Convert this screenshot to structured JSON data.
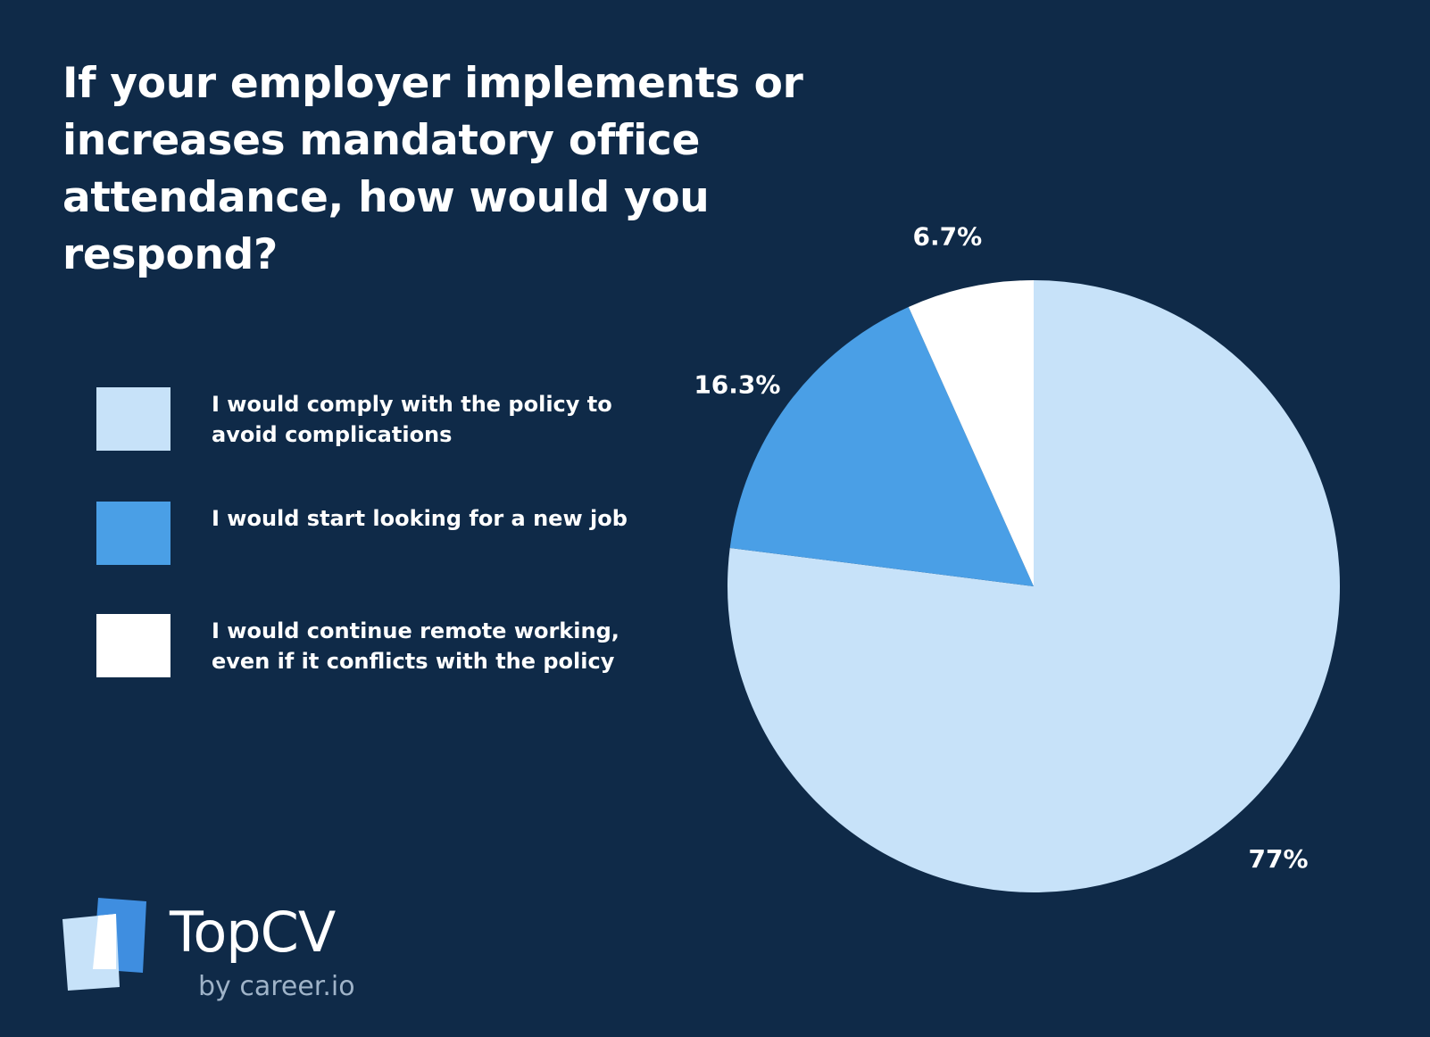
{
  "colors": {
    "background": "#0f2a48",
    "comply": "#c7e2f9",
    "new_job": "#4a9fe6",
    "remote": "#ffffff",
    "logo_dark": "#3f8ee0",
    "logo_light": "#c7e2f9",
    "logo_sub": "#9fb3c8"
  },
  "chart_data": {
    "type": "pie",
    "title": " If your employer implements or\nincreases mandatory office\nattendance, how would you respond?",
    "legend_position": "left",
    "slices": [
      {
        "label": "I would comply with the policy to avoid complications",
        "value": 77,
        "value_label": "77%",
        "color": "#c7e2f9"
      },
      {
        "label": "I would start looking for a new job",
        "value": 16.3,
        "value_label": "16.3%",
        "color": "#4a9fe6"
      },
      {
        "label": "I would continue remote working, even if it conflicts with the policy",
        "value": 6.7,
        "value_label": "6.7%",
        "color": "#ffffff"
      }
    ]
  },
  "legend": {
    "items": [
      {
        "label": "I would comply with the policy to avoid complications",
        "color": "#c7e2f9"
      },
      {
        "label": "I would start looking for a new job",
        "color": "#4a9fe6"
      },
      {
        "label": "I would continue remote working, even if it conflicts with the policy",
        "color": "#ffffff"
      }
    ]
  },
  "logo": {
    "icon": "topcv-logo-icon",
    "name": "TopCV",
    "sub": "by career.io"
  }
}
